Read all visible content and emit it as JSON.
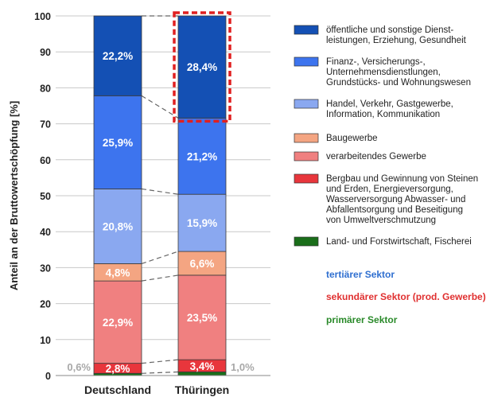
{
  "chart_data": {
    "type": "bar",
    "stacked": true,
    "categories": [
      "Deutschland",
      "Thüringen"
    ],
    "ylabel": "Anteil an der Bruttowertschöpfung [%]",
    "ylim": [
      0,
      100
    ],
    "yticks": [
      "0",
      "10",
      "20",
      "30",
      "40",
      "50",
      "60",
      "70",
      "80",
      "90",
      "100"
    ],
    "grid": true,
    "series": [
      {
        "name": "Land- und Forstwirtschaft, Fischerei",
        "values": [
          0.6,
          1.0
        ],
        "labels": [
          "0,6%",
          "1,0%"
        ],
        "color": "#1a6e1a",
        "sector": "primary"
      },
      {
        "name": "Bergbau und Gewinnung von Steinen und Erden, Energieversorgung, Wasserversorgung Abwasser- und Abfallentsorgung und Beseitigung von Umweltverschmutzung",
        "values": [
          2.8,
          3.4
        ],
        "labels": [
          "2,8%",
          "3,4%"
        ],
        "color": "#e8363c",
        "sector": "secondary"
      },
      {
        "name": "verarbeitendes Gewerbe",
        "values": [
          22.9,
          23.5
        ],
        "labels": [
          "22,9%",
          "23,5%"
        ],
        "color": "#f08080",
        "sector": "secondary"
      },
      {
        "name": "Baugewerbe",
        "values": [
          4.8,
          6.6
        ],
        "labels": [
          "4,8%",
          "6,6%"
        ],
        "color": "#f4a582",
        "sector": "secondary"
      },
      {
        "name": "Handel, Verkehr, Gastgewerbe, Information, Kommunikation",
        "values": [
          20.8,
          15.9
        ],
        "labels": [
          "20,8%",
          "15,9%"
        ],
        "color": "#8aa8f0",
        "sector": "tertiary"
      },
      {
        "name": "Finanz-, Versicherungs-, Unternehmensdienstlungen, Grundstücks- und Wohnungswesen",
        "values": [
          25.9,
          21.2
        ],
        "labels": [
          "25,9%",
          "21,2%"
        ],
        "color": "#3d74ee",
        "sector": "tertiary"
      },
      {
        "name": "öffentliche und sonstige Dienst-leistungen, Erziehung, Gesundheit",
        "values": [
          22.2,
          28.4
        ],
        "labels": [
          "22,2%",
          "28,4%"
        ],
        "color": "#1450b4",
        "sector": "tertiary"
      }
    ],
    "legend": [
      {
        "lines": [
          "öffentliche und sonstige Dienst-",
          "leistungen, Erziehung, Gesundheit"
        ],
        "color": "#1450b4"
      },
      {
        "lines": [
          "Finanz-, Versicherungs-,",
          "Unternehmensdienstlungen,",
          "Grundstücks- und Wohnungswesen"
        ],
        "color": "#3d74ee"
      },
      {
        "lines": [
          "Handel, Verkehr, Gastgewerbe,",
          "Information, Kommunikation"
        ],
        "color": "#8aa8f0"
      },
      {
        "lines": [
          "Baugewerbe"
        ],
        "color": "#f4a582"
      },
      {
        "lines": [
          "verarbeitendes Gewerbe"
        ],
        "color": "#f08080"
      },
      {
        "lines": [
          "Bergbau und Gewinnung von Steinen",
          "und Erden, Energieversorgung,",
          "Wasserversorgung Abwasser- und",
          "Abfallentsorgung und Beseitigung",
          "von Umweltverschmutzung"
        ],
        "color": "#e8363c"
      },
      {
        "lines": [
          "Land- und Forstwirtschaft, Fischerei"
        ],
        "color": "#1a6e1a"
      }
    ],
    "sectors": [
      {
        "label": "tertiärer Sektor",
        "color": "#2f6fd0"
      },
      {
        "label": "sekundärer Sektor (prod. Gewerbe)",
        "color": "#e03030"
      },
      {
        "label": "primärer Sektor",
        "color": "#2a8a2a"
      }
    ],
    "highlight": {
      "category": "Thüringen",
      "series": "öffentliche und sonstige Dienst-leistungen, Erziehung, Gesundheit",
      "color": "#e02020"
    }
  }
}
